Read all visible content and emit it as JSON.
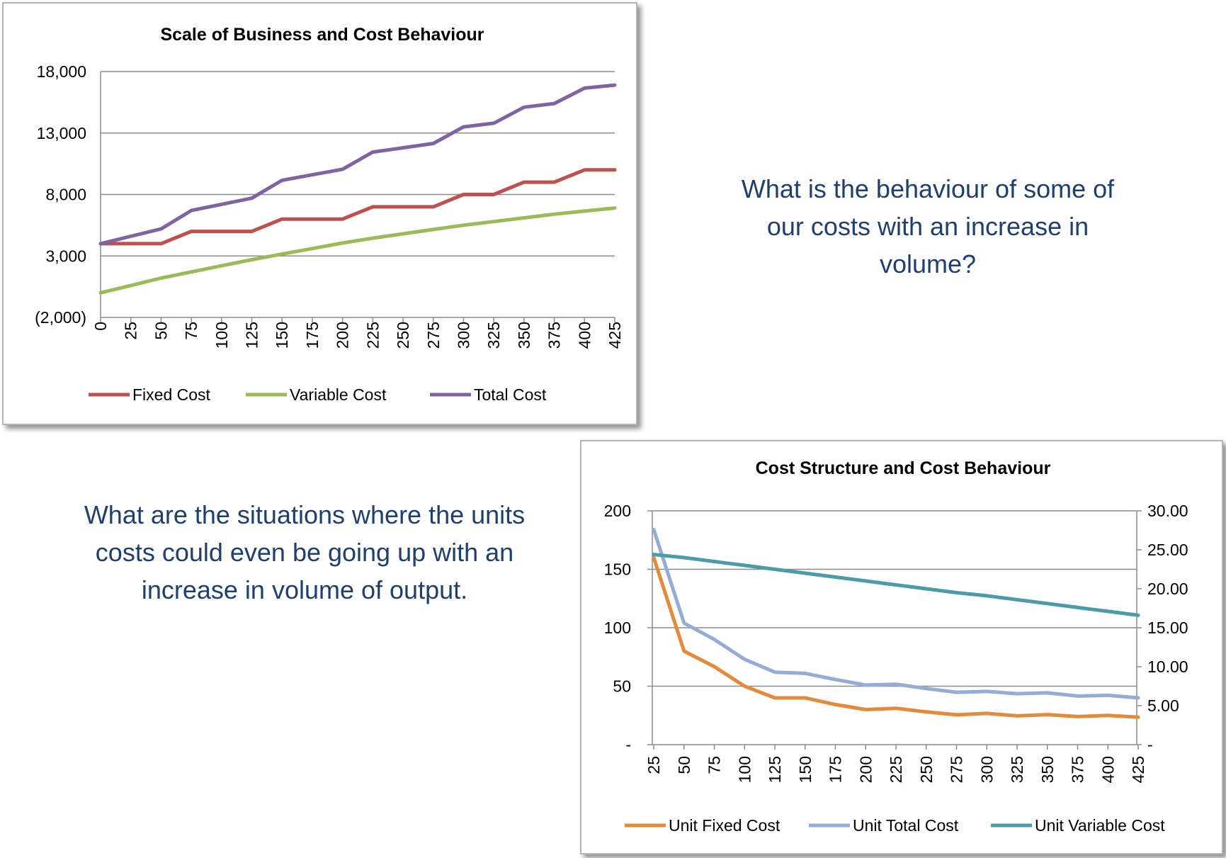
{
  "questions": {
    "q1": "What is the behaviour of some of our costs with an increase in volume?",
    "q2": "What are the situations where the units costs could even be going up with an increase in volume of output."
  },
  "chart_data": [
    {
      "type": "line",
      "title": "Scale of Business and Cost Behaviour",
      "x": [
        0,
        25,
        50,
        75,
        100,
        125,
        150,
        175,
        200,
        225,
        250,
        275,
        300,
        325,
        350,
        375,
        400,
        425
      ],
      "y_ticks": [
        -2000,
        3000,
        8000,
        13000,
        18000
      ],
      "y_tick_labels": [
        "(2,000)",
        "3,000",
        "8,000",
        "13,000",
        "18,000"
      ],
      "ylim": [
        -2000,
        18000
      ],
      "grid": "horizontal",
      "legend": "bottom",
      "series": [
        {
          "name": "Fixed Cost",
          "color": "#c0504d",
          "values": [
            4000,
            4000,
            4000,
            5000,
            5000,
            5000,
            6000,
            6000,
            6000,
            7000,
            7000,
            7000,
            8000,
            8000,
            9000,
            9000,
            10000,
            10000
          ]
        },
        {
          "name": "Variable Cost",
          "color": "#9bbb59",
          "values": [
            0,
            600,
            1200,
            1700,
            2200,
            2700,
            3150,
            3600,
            4050,
            4450,
            4800,
            5150,
            5500,
            5800,
            6100,
            6400,
            6650,
            6900
          ]
        },
        {
          "name": "Total Cost",
          "color": "#8064a2",
          "values": [
            4000,
            4600,
            5200,
            6700,
            7200,
            7700,
            9150,
            9600,
            10050,
            11450,
            11800,
            12150,
            13500,
            13800,
            15100,
            15400,
            16650,
            16900
          ]
        }
      ]
    },
    {
      "type": "line",
      "title": "Cost Structure and Cost Behaviour",
      "x": [
        25,
        50,
        75,
        100,
        125,
        150,
        175,
        200,
        225,
        250,
        275,
        300,
        325,
        350,
        375,
        400,
        425
      ],
      "y_ticks_left": [
        0,
        50,
        100,
        150,
        200
      ],
      "y_tick_labels_left": [
        "-",
        "50",
        "100",
        "150",
        "200"
      ],
      "ylim_left": [
        0,
        200
      ],
      "y_ticks_right": [
        0,
        5,
        10,
        15,
        20,
        25,
        30
      ],
      "y_tick_labels_right": [
        "-",
        "5.00",
        "10.00",
        "15.00",
        "20.00",
        "25.00",
        "30.00"
      ],
      "ylim_right": [
        0,
        30
      ],
      "grid": "horizontal",
      "legend": "bottom",
      "series": [
        {
          "name": "Unit Fixed Cost",
          "color": "#e38b3c",
          "axis": "left",
          "values": [
            160,
            80,
            66.7,
            50,
            40,
            40,
            34.3,
            30,
            31.1,
            28,
            25.5,
            26.7,
            24.6,
            25.7,
            24,
            25,
            23.5
          ]
        },
        {
          "name": "Unit Total Cost",
          "color": "#95acd4",
          "axis": "left",
          "values": [
            184,
            104,
            90,
            73,
            62,
            61,
            55.7,
            51,
            51.7,
            48,
            44.8,
            45.5,
            43.6,
            44.3,
            41.6,
            42.2,
            40
          ]
        },
        {
          "name": "Unit Variable Cost",
          "color": "#4c9ba9",
          "axis": "right",
          "values": [
            24.4,
            24.0,
            23.5,
            23.0,
            22.5,
            22.0,
            21.5,
            21.0,
            20.5,
            20.0,
            19.5,
            19.1,
            18.6,
            18.1,
            17.6,
            17.1,
            16.6
          ]
        }
      ]
    }
  ]
}
